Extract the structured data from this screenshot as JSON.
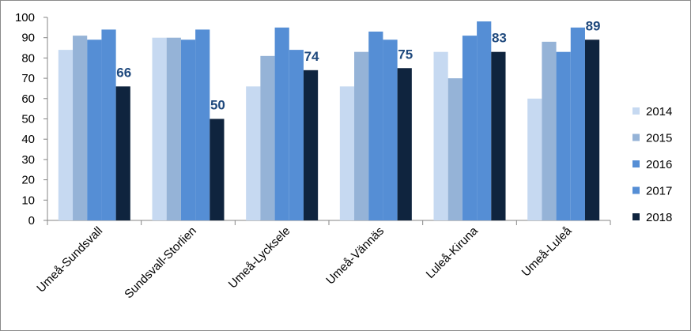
{
  "chart_data": {
    "type": "bar",
    "categories": [
      "Umeå-Sundsvall",
      "Sundsvall-Storlien",
      "Umeå-Lycksele",
      "Umeå-Vännäs",
      "Luleå-Kiruna",
      "Umeå-Luleå"
    ],
    "series": [
      {
        "name": "2014",
        "color": "#c6d9f1",
        "values": [
          84,
          90,
          66,
          66,
          83,
          60
        ]
      },
      {
        "name": "2015",
        "color": "#95b3d7",
        "values": [
          91,
          90,
          81,
          83,
          70,
          88
        ]
      },
      {
        "name": "2016",
        "color": "#558ed5",
        "values": [
          89,
          89,
          95,
          93,
          91,
          83
        ]
      },
      {
        "name": "2017",
        "color": "#558ed5",
        "values": [
          94,
          94,
          84,
          89,
          98,
          95
        ]
      },
      {
        "name": "2018",
        "color": "#0f243e",
        "values": [
          66,
          50,
          74,
          75,
          83,
          89
        ]
      }
    ],
    "data_labels": {
      "series": "2018",
      "color": "#1f497d"
    },
    "y_ticks": [
      0,
      10,
      20,
      30,
      40,
      50,
      60,
      70,
      80,
      90,
      100
    ],
    "ylim": [
      0,
      100
    ],
    "grid": false,
    "legend_position": "right"
  }
}
